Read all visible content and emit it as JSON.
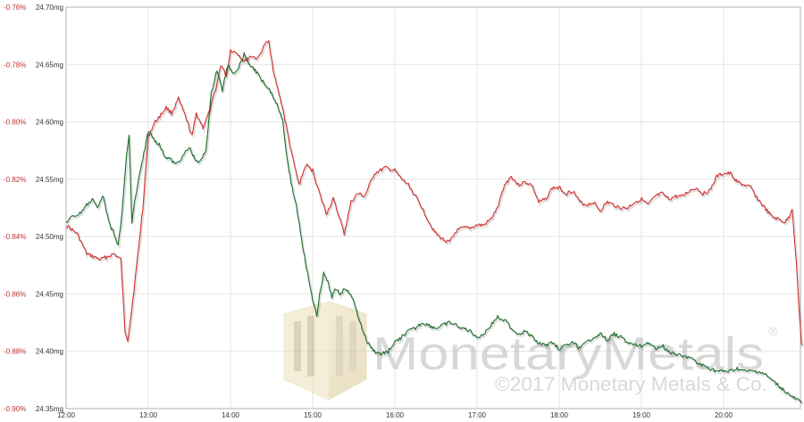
{
  "chart_data": {
    "type": "line",
    "title": "",
    "xlabel": "",
    "ylabel": "",
    "grid": true,
    "x_ticks": [
      "12:00",
      "13:00",
      "14:00",
      "15:00",
      "16:00",
      "17:00",
      "18:00",
      "19:00",
      "20:00"
    ],
    "x_range": [
      "12:00",
      "20:57"
    ],
    "y_left_ticks": [
      "-0.76%",
      "-0.78%",
      "-0.80%",
      "-0.82%",
      "-0.84%",
      "-0.86%",
      "-0.88%",
      "-0.90%"
    ],
    "y_left_range": [
      -0.9,
      -0.76
    ],
    "y_right_ticks": [
      "24.70mg",
      "24.65mg",
      "24.60mg",
      "24.55mg",
      "24.50mg",
      "24.45mg",
      "24.40mg",
      "24.35mg"
    ],
    "y_right_range": [
      24.35,
      24.7
    ],
    "series": [
      {
        "axis": "left",
        "color": "#d32f2f",
        "points": [
          [
            "12:00",
            -0.836
          ],
          [
            "12:08",
            -0.839
          ],
          [
            "12:15",
            -0.846
          ],
          [
            "12:25",
            -0.848
          ],
          [
            "12:35",
            -0.846
          ],
          [
            "12:40",
            -0.848
          ],
          [
            "12:43",
            -0.873
          ],
          [
            "12:45",
            -0.876
          ],
          [
            "12:48",
            -0.865
          ],
          [
            "12:52",
            -0.848
          ],
          [
            "12:56",
            -0.83
          ],
          [
            "13:00",
            -0.805
          ],
          [
            "13:05",
            -0.8
          ],
          [
            "13:10",
            -0.797
          ],
          [
            "13:13",
            -0.795
          ],
          [
            "13:17",
            -0.797
          ],
          [
            "13:22",
            -0.792
          ],
          [
            "13:27",
            -0.798
          ],
          [
            "13:32",
            -0.805
          ],
          [
            "13:35",
            -0.797
          ],
          [
            "13:40",
            -0.802
          ],
          [
            "13:45",
            -0.796
          ],
          [
            "13:50",
            -0.787
          ],
          [
            "13:53",
            -0.78
          ],
          [
            "13:57",
            -0.784
          ],
          [
            "14:00",
            -0.775
          ],
          [
            "14:05",
            -0.776
          ],
          [
            "14:10",
            -0.779
          ],
          [
            "14:15",
            -0.777
          ],
          [
            "14:20",
            -0.778
          ],
          [
            "14:25",
            -0.773
          ],
          [
            "14:28",
            -0.772
          ],
          [
            "14:32",
            -0.784
          ],
          [
            "14:38",
            -0.795
          ],
          [
            "14:45",
            -0.812
          ],
          [
            "14:50",
            -0.822
          ],
          [
            "14:55",
            -0.815
          ],
          [
            "15:00",
            -0.817
          ],
          [
            "15:05",
            -0.825
          ],
          [
            "15:10",
            -0.832
          ],
          [
            "15:15",
            -0.827
          ],
          [
            "15:20",
            -0.834
          ],
          [
            "15:23",
            -0.839
          ],
          [
            "15:28",
            -0.828
          ],
          [
            "15:33",
            -0.825
          ],
          [
            "15:38",
            -0.826
          ],
          [
            "15:45",
            -0.818
          ],
          [
            "15:53",
            -0.816
          ],
          [
            "16:00",
            -0.817
          ],
          [
            "16:05",
            -0.82
          ],
          [
            "16:10",
            -0.822
          ],
          [
            "16:15",
            -0.826
          ],
          [
            "16:20",
            -0.83
          ],
          [
            "16:25",
            -0.835
          ],
          [
            "16:30",
            -0.839
          ],
          [
            "16:35",
            -0.841
          ],
          [
            "16:40",
            -0.842
          ],
          [
            "16:45",
            -0.838
          ],
          [
            "16:50",
            -0.837
          ],
          [
            "16:55",
            -0.837
          ],
          [
            "17:00",
            -0.836
          ],
          [
            "17:05",
            -0.836
          ],
          [
            "17:10",
            -0.834
          ],
          [
            "17:15",
            -0.83
          ],
          [
            "17:20",
            -0.822
          ],
          [
            "17:25",
            -0.819
          ],
          [
            "17:30",
            -0.822
          ],
          [
            "17:35",
            -0.821
          ],
          [
            "17:40",
            -0.822
          ],
          [
            "17:45",
            -0.828
          ],
          [
            "17:50",
            -0.827
          ],
          [
            "17:55",
            -0.823
          ],
          [
            "18:00",
            -0.823
          ],
          [
            "18:05",
            -0.825
          ],
          [
            "18:10",
            -0.824
          ],
          [
            "18:15",
            -0.828
          ],
          [
            "18:20",
            -0.829
          ],
          [
            "18:25",
            -0.828
          ],
          [
            "18:30",
            -0.831
          ],
          [
            "18:35",
            -0.828
          ],
          [
            "18:40",
            -0.829
          ],
          [
            "18:45",
            -0.83
          ],
          [
            "18:50",
            -0.83
          ],
          [
            "18:55",
            -0.828
          ],
          [
            "19:00",
            -0.827
          ],
          [
            "19:05",
            -0.829
          ],
          [
            "19:10",
            -0.826
          ],
          [
            "19:15",
            -0.825
          ],
          [
            "19:20",
            -0.827
          ],
          [
            "19:25",
            -0.826
          ],
          [
            "19:30",
            -0.826
          ],
          [
            "19:35",
            -0.824
          ],
          [
            "19:40",
            -0.823
          ],
          [
            "19:45",
            -0.825
          ],
          [
            "19:50",
            -0.824
          ],
          [
            "19:55",
            -0.819
          ],
          [
            "20:00",
            -0.818
          ],
          [
            "20:05",
            -0.818
          ],
          [
            "20:10",
            -0.821
          ],
          [
            "20:15",
            -0.822
          ],
          [
            "20:20",
            -0.823
          ],
          [
            "20:25",
            -0.827
          ],
          [
            "20:30",
            -0.83
          ],
          [
            "20:35",
            -0.833
          ],
          [
            "20:40",
            -0.834
          ],
          [
            "20:45",
            -0.835
          ],
          [
            "20:48",
            -0.833
          ],
          [
            "20:50",
            -0.83
          ],
          [
            "20:52",
            -0.842
          ],
          [
            "20:54",
            -0.856
          ],
          [
            "20:56",
            -0.872
          ],
          [
            "20:57",
            -0.878
          ]
        ]
      },
      {
        "axis": "left",
        "color": "#1b6e2a",
        "points": [
          [
            "12:00",
            -0.835
          ],
          [
            "12:05",
            -0.833
          ],
          [
            "12:10",
            -0.832
          ],
          [
            "12:15",
            -0.829
          ],
          [
            "12:20",
            -0.827
          ],
          [
            "12:23",
            -0.83
          ],
          [
            "12:27",
            -0.826
          ],
          [
            "12:30",
            -0.832
          ],
          [
            "12:33",
            -0.837
          ],
          [
            "12:36",
            -0.84
          ],
          [
            "12:38",
            -0.843
          ],
          [
            "12:41",
            -0.831
          ],
          [
            "12:44",
            -0.812
          ],
          [
            "12:46",
            -0.805
          ],
          [
            "12:48",
            -0.835
          ],
          [
            "12:50",
            -0.828
          ],
          [
            "12:53",
            -0.82
          ],
          [
            "12:56",
            -0.813
          ],
          [
            "13:00",
            -0.803
          ],
          [
            "13:04",
            -0.806
          ],
          [
            "13:08",
            -0.808
          ],
          [
            "13:12",
            -0.812
          ],
          [
            "13:16",
            -0.813
          ],
          [
            "13:20",
            -0.815
          ],
          [
            "13:25",
            -0.812
          ],
          [
            "13:30",
            -0.809
          ],
          [
            "13:34",
            -0.813
          ],
          [
            "13:38",
            -0.814
          ],
          [
            "13:42",
            -0.81
          ],
          [
            "13:46",
            -0.79
          ],
          [
            "13:50",
            -0.782
          ],
          [
            "13:54",
            -0.789
          ],
          [
            "13:58",
            -0.78
          ],
          [
            "14:02",
            -0.783
          ],
          [
            "14:06",
            -0.781
          ],
          [
            "14:10",
            -0.776
          ],
          [
            "14:14",
            -0.78
          ],
          [
            "14:18",
            -0.782
          ],
          [
            "14:22",
            -0.785
          ],
          [
            "14:26",
            -0.787
          ],
          [
            "14:30",
            -0.79
          ],
          [
            "14:34",
            -0.794
          ],
          [
            "14:38",
            -0.799
          ],
          [
            "14:42",
            -0.815
          ],
          [
            "14:45",
            -0.823
          ],
          [
            "14:48",
            -0.829
          ],
          [
            "14:51",
            -0.838
          ],
          [
            "14:54",
            -0.847
          ],
          [
            "14:57",
            -0.855
          ],
          [
            "15:00",
            -0.862
          ],
          [
            "15:03",
            -0.868
          ],
          [
            "15:05",
            -0.86
          ],
          [
            "15:08",
            -0.853
          ],
          [
            "15:11",
            -0.856
          ],
          [
            "15:14",
            -0.861
          ],
          [
            "15:17",
            -0.858
          ],
          [
            "15:20",
            -0.86
          ],
          [
            "15:24",
            -0.858
          ],
          [
            "15:28",
            -0.86
          ],
          [
            "15:32",
            -0.866
          ],
          [
            "15:36",
            -0.872
          ],
          [
            "15:40",
            -0.877
          ],
          [
            "15:45",
            -0.88
          ],
          [
            "15:50",
            -0.881
          ],
          [
            "15:55",
            -0.88
          ],
          [
            "16:00",
            -0.877
          ],
          [
            "16:05",
            -0.875
          ],
          [
            "16:10",
            -0.873
          ],
          [
            "16:15",
            -0.872
          ],
          [
            "16:20",
            -0.87
          ],
          [
            "16:25",
            -0.871
          ],
          [
            "16:30",
            -0.872
          ],
          [
            "16:35",
            -0.871
          ],
          [
            "16:40",
            -0.87
          ],
          [
            "16:45",
            -0.871
          ],
          [
            "16:50",
            -0.872
          ],
          [
            "16:55",
            -0.873
          ],
          [
            "17:00",
            -0.875
          ],
          [
            "17:05",
            -0.874
          ],
          [
            "17:10",
            -0.871
          ],
          [
            "17:15",
            -0.868
          ],
          [
            "17:20",
            -0.869
          ],
          [
            "17:25",
            -0.872
          ],
          [
            "17:30",
            -0.874
          ],
          [
            "17:35",
            -0.873
          ],
          [
            "17:40",
            -0.875
          ],
          [
            "17:45",
            -0.877
          ],
          [
            "17:50",
            -0.878
          ],
          [
            "17:55",
            -0.877
          ],
          [
            "18:00",
            -0.879
          ],
          [
            "18:05",
            -0.878
          ],
          [
            "18:10",
            -0.877
          ],
          [
            "18:15",
            -0.879
          ],
          [
            "18:20",
            -0.877
          ],
          [
            "18:25",
            -0.875
          ],
          [
            "18:30",
            -0.874
          ],
          [
            "18:35",
            -0.876
          ],
          [
            "18:40",
            -0.874
          ],
          [
            "18:45",
            -0.875
          ],
          [
            "18:50",
            -0.877
          ],
          [
            "18:55",
            -0.878
          ],
          [
            "19:00",
            -0.878
          ],
          [
            "19:05",
            -0.877
          ],
          [
            "19:10",
            -0.879
          ],
          [
            "19:15",
            -0.878
          ],
          [
            "19:20",
            -0.88
          ],
          [
            "19:25",
            -0.881
          ],
          [
            "19:30",
            -0.882
          ],
          [
            "19:35",
            -0.882
          ],
          [
            "19:40",
            -0.884
          ],
          [
            "19:45",
            -0.885
          ],
          [
            "19:50",
            -0.886
          ],
          [
            "19:55",
            -0.887
          ],
          [
            "20:00",
            -0.887
          ],
          [
            "20:05",
            -0.887
          ],
          [
            "20:10",
            -0.886
          ],
          [
            "20:15",
            -0.887
          ],
          [
            "20:20",
            -0.887
          ],
          [
            "20:25",
            -0.887
          ],
          [
            "20:30",
            -0.888
          ],
          [
            "20:35",
            -0.89
          ],
          [
            "20:40",
            -0.892
          ],
          [
            "20:45",
            -0.894
          ],
          [
            "20:50",
            -0.896
          ],
          [
            "20:54",
            -0.897
          ],
          [
            "20:57",
            -0.898
          ]
        ]
      }
    ]
  },
  "watermark": {
    "brand": "MonetaryMetals",
    "registered": "®",
    "copyright": "©2017 Monetary Metals & Co."
  }
}
